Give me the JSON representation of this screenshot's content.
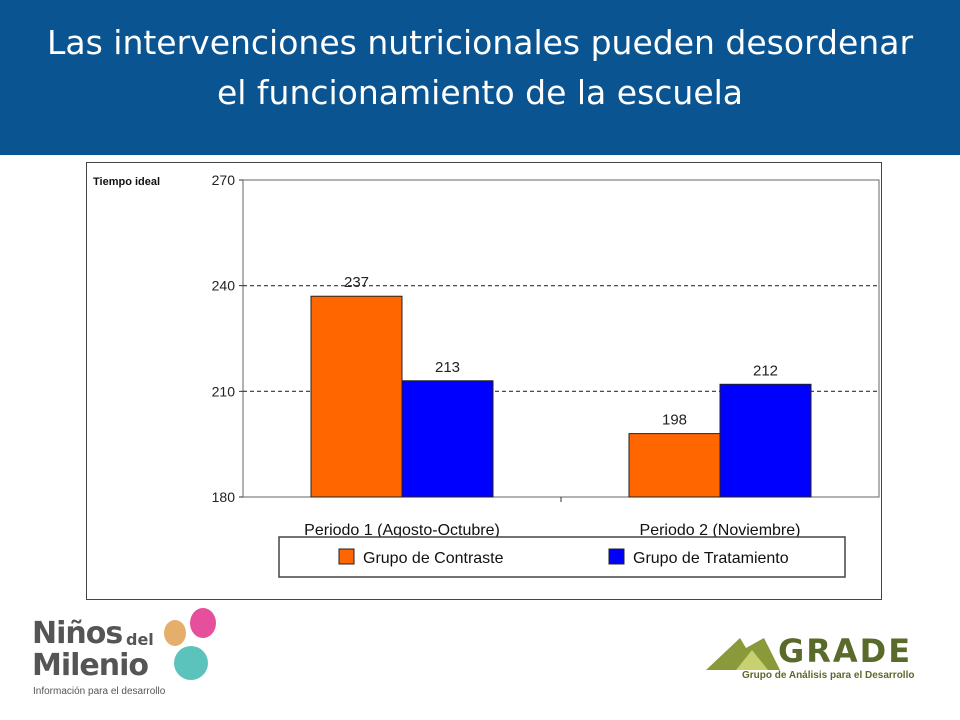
{
  "slide": {
    "title_line1": "Las intervenciones nutricionales pueden desordenar",
    "title_line2": "el funcionamiento de la escuela",
    "header_color": "#0a5591"
  },
  "chart_data": {
    "type": "bar",
    "ylabel": "Tiempo ideal",
    "ylim": [
      180,
      270
    ],
    "yticks": [
      180,
      210,
      240,
      270
    ],
    "gridlines_dashed": [
      210,
      240
    ],
    "categories": [
      "Periodo 1 (Agosto-Octubre)",
      "Periodo 2 (Noviembre)"
    ],
    "series": [
      {
        "name": "Grupo de Contraste",
        "values": [
          237,
          198
        ],
        "color": "#ff6600"
      },
      {
        "name": "Grupo de Tratamiento",
        "values": [
          213,
          212
        ],
        "color": "#0000ff"
      }
    ],
    "data_labels": [
      [
        "237",
        "198"
      ],
      [
        "213",
        "212"
      ]
    ],
    "legend_position": "bottom"
  },
  "logos": {
    "ninos_line1": "Niños",
    "ninos_del": "del",
    "ninos_line2": "Milenio",
    "ninos_tagline": "Información para el desarrollo",
    "grade_name": "GRADE",
    "grade_tagline": "Grupo de Análisis para el Desarrollo",
    "grade_color": "#5a6a2a"
  }
}
